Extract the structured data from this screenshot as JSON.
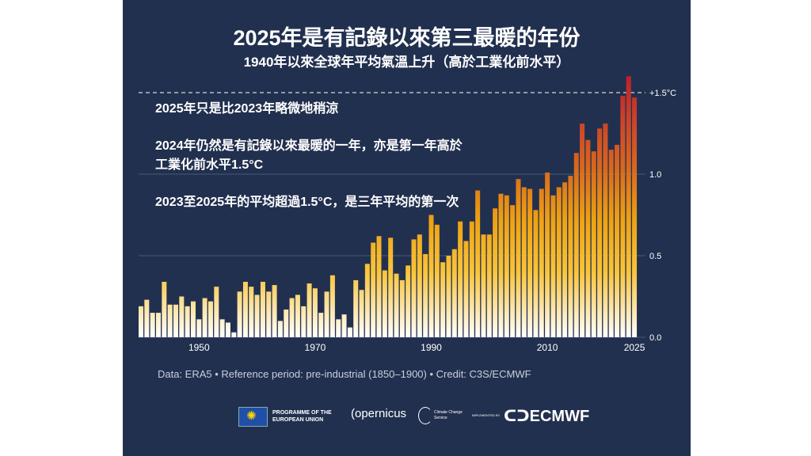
{
  "title": "2025年是有記錄以來第三最暖的年份",
  "subtitle": "1940年以來全球年平均氣溫上升（高於工業化前水平）",
  "annotations": [
    "2025年只是比2023年略微地稍涼",
    "2024年仍然是有記錄以來最暖的一年，亦是第一年高於工業化前水平1.5°C",
    "2023至2025年的平均超過1.5°C，是三年平均的第一次"
  ],
  "source": "Data: ERA5 • Reference period: pre-industrial (1850–1900) • Credit: C3S/ECMWF",
  "logos": {
    "eu": "PROGRAMME OF THE EUROPEAN UNION",
    "copernicus": "opernicus",
    "c3s": "Climate Change Service",
    "implemented": "IMPLEMENTED BY",
    "ecmwf": "ECMWF"
  },
  "chart_data": {
    "type": "bar",
    "title": "2025年是有記錄以來第三最暖的年份",
    "x_start": 1940,
    "x": [
      1940,
      1941,
      1942,
      1943,
      1944,
      1945,
      1946,
      1947,
      1948,
      1949,
      1950,
      1951,
      1952,
      1953,
      1954,
      1955,
      1956,
      1957,
      1958,
      1959,
      1960,
      1961,
      1962,
      1963,
      1964,
      1965,
      1966,
      1967,
      1968,
      1969,
      1970,
      1971,
      1972,
      1973,
      1974,
      1975,
      1976,
      1977,
      1978,
      1979,
      1980,
      1981,
      1982,
      1983,
      1984,
      1985,
      1986,
      1987,
      1988,
      1989,
      1990,
      1991,
      1992,
      1993,
      1994,
      1995,
      1996,
      1997,
      1998,
      1999,
      2000,
      2001,
      2002,
      2003,
      2004,
      2005,
      2006,
      2007,
      2008,
      2009,
      2010,
      2011,
      2012,
      2013,
      2014,
      2015,
      2016,
      2017,
      2018,
      2019,
      2020,
      2021,
      2022,
      2023,
      2024,
      2025
    ],
    "values": [
      0.19,
      0.23,
      0.15,
      0.15,
      0.34,
      0.2,
      0.2,
      0.25,
      0.19,
      0.22,
      0.11,
      0.24,
      0.22,
      0.31,
      0.11,
      0.09,
      0.03,
      0.28,
      0.34,
      0.31,
      0.26,
      0.34,
      0.28,
      0.32,
      0.1,
      0.17,
      0.24,
      0.26,
      0.19,
      0.33,
      0.3,
      0.15,
      0.28,
      0.38,
      0.11,
      0.14,
      0.06,
      0.35,
      0.29,
      0.45,
      0.58,
      0.62,
      0.41,
      0.61,
      0.39,
      0.35,
      0.44,
      0.6,
      0.63,
      0.51,
      0.75,
      0.69,
      0.46,
      0.5,
      0.54,
      0.71,
      0.59,
      0.71,
      0.9,
      0.63,
      0.63,
      0.79,
      0.88,
      0.87,
      0.81,
      0.97,
      0.92,
      0.91,
      0.78,
      0.91,
      1.01,
      0.87,
      0.92,
      0.95,
      0.99,
      1.13,
      1.31,
      1.21,
      1.14,
      1.28,
      1.31,
      1.15,
      1.18,
      1.48,
      1.6,
      1.47
    ],
    "xticks": [
      "1950",
      "1970",
      "1990",
      "2010",
      "2025"
    ],
    "yticks": [
      "0.0",
      "0.5",
      "1.0"
    ],
    "ylim": [
      0,
      1.5
    ],
    "reference_line": {
      "value": 1.5,
      "label": "+1.5°C",
      "style": "dashed"
    },
    "grid": true,
    "colors": {
      "low": "#fff8e6",
      "mid": "#f7b514",
      "high": "#d86a1c",
      "top": "#c4202a",
      "background": "#22304f"
    }
  }
}
